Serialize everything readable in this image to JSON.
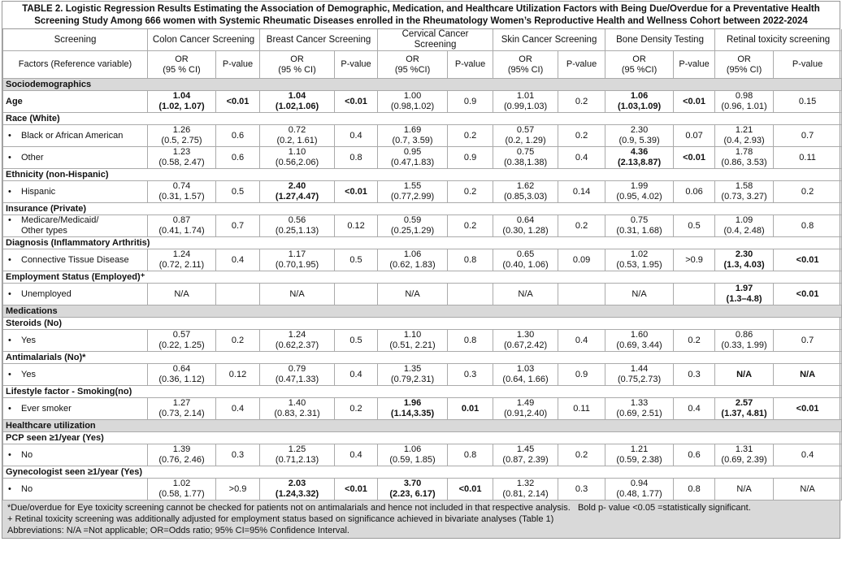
{
  "title": "TABLE 2. Logistic Regression Results Estimating the Association of Demographic, Medication, and Healthcare Utilization Factors with Being Due/Overdue for a Preventative Health Screening Study Among 666 women with Systemic Rheumatic Diseases enrolled in the Rheumatology Women’s Reproductive Health and Wellness Cohort between 2022-2024",
  "header": {
    "screening": "Screening",
    "factors": "Factors (Reference variable)"
  },
  "groups": [
    {
      "name": "Colon Cancer Screening",
      "or": "OR\n(95 % CI)",
      "p": "P-value"
    },
    {
      "name": "Breast Cancer Screening",
      "or": "OR\n(95 % CI)",
      "p": "P-value"
    },
    {
      "name": "Cervical Cancer Screening",
      "or": "OR\n(95 %CI)",
      "p": "P-value"
    },
    {
      "name": "Skin Cancer Screening",
      "or": "OR\n(95% CI)",
      "p": "P-value"
    },
    {
      "name": "Bone Density Testing",
      "or": "OR\n(95 %CI)",
      "p": "P-value"
    },
    {
      "name": "Retinal toxicity screening",
      "or": "OR\n(95% CI)",
      "p": "P-value"
    }
  ],
  "rows": [
    {
      "kind": "section",
      "label": "Sociodemographics"
    },
    {
      "kind": "item",
      "label": "Age",
      "bold_label": true,
      "cells": [
        {
          "or": "1.04",
          "ci": "(1.02, 1.07)",
          "p": "<0.01",
          "bold": true
        },
        {
          "or": "1.04",
          "ci": "(1.02,1.06)",
          "p": "<0.01",
          "bold": true
        },
        {
          "or": "1.00",
          "ci": "(0.98,1.02)",
          "p": "0.9"
        },
        {
          "or": "1.01",
          "ci": "(0.99,1.03)",
          "p": "0.2"
        },
        {
          "or": "1.06",
          "ci": "(1.03,1.09)",
          "p": "<0.01",
          "bold": true
        },
        {
          "or": "0.98",
          "ci": "(0.96, 1.01)",
          "p": "0.15"
        }
      ]
    },
    {
      "kind": "subsection",
      "label": "Race (White)"
    },
    {
      "kind": "item",
      "bullet": true,
      "label": "Black or African American",
      "cells": [
        {
          "or": "1.26",
          "ci": "(0.5, 2.75)",
          "p": "0.6"
        },
        {
          "or": "0.72",
          "ci": "(0.2, 1.61)",
          "p": "0.4"
        },
        {
          "or": "1.69",
          "ci": "(0.7, 3.59)",
          "p": "0.2"
        },
        {
          "or": "0.57",
          "ci": "(0.2, 1.29)",
          "p": "0.2"
        },
        {
          "or": "2.30",
          "ci": "(0.9, 5.39)",
          "p": "0.07"
        },
        {
          "or": "1.21",
          "ci": "(0.4, 2.93)",
          "p": "0.7"
        }
      ]
    },
    {
      "kind": "item",
      "bullet": true,
      "label": "Other",
      "cells": [
        {
          "or": "1.23",
          "ci": "(0.58, 2.47)",
          "p": "0.6"
        },
        {
          "or": "1.10",
          "ci": "(0.56,2.06)",
          "p": "0.8"
        },
        {
          "or": "0.95",
          "ci": "(0.47,1.83)",
          "p": "0.9"
        },
        {
          "or": "0.75",
          "ci": "(0.38,1.38)",
          "p": "0.4"
        },
        {
          "or": "4.36",
          "ci": "(2.13,8.87)",
          "p": "<0.01",
          "bold": true
        },
        {
          "or": "1.78",
          "ci": "(0.86, 3.53)",
          "p": "0.11"
        }
      ]
    },
    {
      "kind": "subsection",
      "label": "Ethnicity (non-Hispanic)"
    },
    {
      "kind": "item",
      "bullet": true,
      "label": "Hispanic",
      "cells": [
        {
          "or": "0.74",
          "ci": "(0.31, 1.57)",
          "p": "0.5"
        },
        {
          "or": "2.40",
          "ci": "(1.27,4.47)",
          "p": "<0.01",
          "bold": true
        },
        {
          "or": "1.55",
          "ci": "(0.77,2.99)",
          "p": "0.2"
        },
        {
          "or": "1.62",
          "ci": "(0.85,3.03)",
          "p": "0.14"
        },
        {
          "or": "1.99",
          "ci": "(0.95, 4.02)",
          "p": "0.06"
        },
        {
          "or": "1.58",
          "ci": "(0.73, 3.27)",
          "p": "0.2"
        }
      ]
    },
    {
      "kind": "subsection",
      "label": "Insurance (Private)"
    },
    {
      "kind": "item",
      "bullet": true,
      "label": "Medicare/Medicaid/\nOther types",
      "cells": [
        {
          "or": "0.87",
          "ci": "(0.41, 1.74)",
          "p": "0.7"
        },
        {
          "or": "0.56",
          "ci": "(0.25,1.13)",
          "p": "0.12"
        },
        {
          "or": "0.59",
          "ci": "(0.25,1.29)",
          "p": "0.2"
        },
        {
          "or": "0.64",
          "ci": "(0.30, 1.28)",
          "p": "0.2"
        },
        {
          "or": "0.75",
          "ci": "(0.31, 1.68)",
          "p": "0.5"
        },
        {
          "or": "1.09",
          "ci": "(0.4, 2.48)",
          "p": "0.8"
        }
      ]
    },
    {
      "kind": "subsection",
      "label": "Diagnosis (Inflammatory Arthritis)"
    },
    {
      "kind": "item",
      "bullet": true,
      "label": "Connective Tissue Disease",
      "cells": [
        {
          "or": "1.24",
          "ci": "(0.72, 2.11)",
          "p": "0.4"
        },
        {
          "or": "1.17",
          "ci": "(0.70,1.95)",
          "p": "0.5"
        },
        {
          "or": "1.06",
          "ci": "(0.62, 1.83)",
          "p": "0.8"
        },
        {
          "or": "0.65",
          "ci": "(0.40, 1.06)",
          "p": "0.09"
        },
        {
          "or": "1.02",
          "ci": "(0.53, 1.95)",
          "p": ">0.9"
        },
        {
          "or": "2.30",
          "ci": "(1.3, 4.03)",
          "p": "<0.01",
          "bold": true
        }
      ]
    },
    {
      "kind": "subsection",
      "label": "Employment Status (Employed)⁺"
    },
    {
      "kind": "item",
      "bullet": true,
      "label": "Unemployed",
      "cells": [
        {
          "or": "N/A"
        },
        {
          "or": "N/A"
        },
        {
          "or": "N/A"
        },
        {
          "or": "N/A"
        },
        {
          "or": "N/A"
        },
        {
          "or": "1.97",
          "ci": "(1.3–4.8)",
          "p": "<0.01",
          "bold": true
        }
      ]
    },
    {
      "kind": "section",
      "label": "Medications"
    },
    {
      "kind": "subsection",
      "label": "Steroids (No)"
    },
    {
      "kind": "item",
      "bullet": true,
      "label": "Yes",
      "cells": [
        {
          "or": "0.57",
          "ci": "(0.22, 1.25)",
          "p": "0.2"
        },
        {
          "or": "1.24",
          "ci": "(0.62,2.37)",
          "p": "0.5"
        },
        {
          "or": "1.10",
          "ci": "(0.51, 2.21)",
          "p": "0.8"
        },
        {
          "or": "1.30",
          "ci": "(0.67,2.42)",
          "p": "0.4"
        },
        {
          "or": "1.60",
          "ci": "(0.69, 3.44)",
          "p": "0.2"
        },
        {
          "or": "0.86",
          "ci": "(0.33, 1.99)",
          "p": "0.7"
        }
      ]
    },
    {
      "kind": "subsection",
      "label": "Antimalarials (No)*"
    },
    {
      "kind": "item",
      "bullet": true,
      "label": "Yes",
      "cells": [
        {
          "or": "0.64",
          "ci": "(0.36, 1.12)",
          "p": "0.12"
        },
        {
          "or": "0.79",
          "ci": "(0.47,1.33)",
          "p": "0.4"
        },
        {
          "or": "1.35",
          "ci": "(0.79,2.31)",
          "p": "0.3"
        },
        {
          "or": "1.03",
          "ci": "(0.64, 1.66)",
          "p": "0.9"
        },
        {
          "or": "1.44",
          "ci": "(0.75,2.73)",
          "p": "0.3"
        },
        {
          "or": "N/A",
          "p": "N/A",
          "bold": true
        }
      ]
    },
    {
      "kind": "subsection",
      "label": "Lifestyle factor - Smoking(no)"
    },
    {
      "kind": "item",
      "bullet": true,
      "label": "Ever smoker",
      "cells": [
        {
          "or": "1.27",
          "ci": "(0.73, 2.14)",
          "p": "0.4"
        },
        {
          "or": "1.40",
          "ci": "(0.83, 2.31)",
          "p": "0.2"
        },
        {
          "or": "1.96",
          "ci": "(1.14,3.35)",
          "p": "0.01",
          "bold": true
        },
        {
          "or": "1.49",
          "ci": "(0.91,2.40)",
          "p": "0.11"
        },
        {
          "or": "1.33",
          "ci": "(0.69, 2.51)",
          "p": "0.4"
        },
        {
          "or": "2.57",
          "ci": "(1.37, 4.81)",
          "p": "<0.01",
          "bold": true
        }
      ]
    },
    {
      "kind": "section",
      "label": "Healthcare utilization"
    },
    {
      "kind": "subsection",
      "label": "PCP seen ≥1/year (Yes)"
    },
    {
      "kind": "item",
      "bullet": true,
      "label": "No",
      "cells": [
        {
          "or": "1.39",
          "ci": "(0.76, 2.46)",
          "p": "0.3"
        },
        {
          "or": "1.25",
          "ci": "(0.71,2.13)",
          "p": "0.4"
        },
        {
          "or": "1.06",
          "ci": "(0.59, 1.85)",
          "p": "0.8"
        },
        {
          "or": "1.45",
          "ci": "(0.87, 2.39)",
          "p": "0.2"
        },
        {
          "or": "1.21",
          "ci": "(0.59, 2.38)",
          "p": "0.6"
        },
        {
          "or": "1.31",
          "ci": "(0.69, 2.39)",
          "p": "0.4"
        }
      ]
    },
    {
      "kind": "subsection",
      "label": "Gynecologist seen ≥1/year (Yes)"
    },
    {
      "kind": "item",
      "bullet": true,
      "label": "No",
      "cells": [
        {
          "or": "1.02",
          "ci": "(0.58, 1.77)",
          "p": ">0.9"
        },
        {
          "or": "2.03",
          "ci": "(1.24,3.32)",
          "p": "<0.01",
          "bold": true
        },
        {
          "or": "3.70",
          "ci": "(2.23, 6.17)",
          "p": "<0.01",
          "bold": true
        },
        {
          "or": "1.32",
          "ci": "(0.81, 2.14)",
          "p": "0.3"
        },
        {
          "or": "0.94",
          "ci": "(0.48, 1.77)",
          "p": "0.8"
        },
        {
          "or": "N/A",
          "p": "N/A"
        }
      ]
    }
  ],
  "footnotes": [
    "*Due/overdue for Eye toxicity screening cannot be checked for patients not on antimalarials and hence not included in that respective analysis.   Bold p- value <0.05 =statistically significant.",
    "+ Retinal toxicity screening was additionally adjusted for employment status based on significance achieved in bivariate analyses (Table 1)",
    "Abbreviations: N/A =Not applicable; OR=Odds ratio; 95% CI=95% Confidence Interval."
  ]
}
